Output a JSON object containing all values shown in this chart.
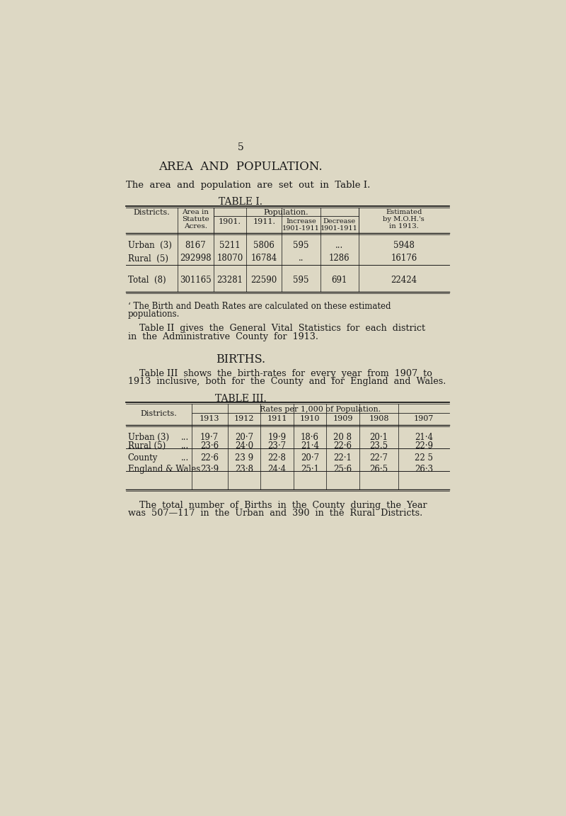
{
  "bg_color": "#ddd8c4",
  "text_color": "#1a1a1a",
  "page_number": "5",
  "title": "AREA  AND  POPULATION.",
  "intro_text": "The  area  and  population  are  set  out  in  Table I.",
  "table1_title": "TABLE I.",
  "table1_rows": [
    [
      "Urban  (3)",
      "8167",
      "5211",
      "5806",
      "595",
      "...",
      "5948"
    ],
    [
      "Rural  (5)",
      "292998",
      "18070",
      "16784",
      "..",
      "1286",
      "16176"
    ],
    [
      "Total  (8)",
      "301165",
      "23281",
      "22590",
      "595",
      "691",
      "22424"
    ]
  ],
  "footnote1": "‘ The Birth and Death Rates are calculated on these estimated\npopulations.",
  "para2_line1": "    Table II  gives  the  General  Vital  Statistics  for  each  district",
  "para2_line2": "in  the  Administrative  County  for  1913.",
  "births_title": "BIRTHS.",
  "births_line1": "    Table III  shows  the  birth-rates  for  every  year  from  1907  to",
  "births_line2": "1913  inclusive,  both  for  the  County  and  for  England  and  Wales.",
  "table3_title": "TABLE III.",
  "table3_col_header": "Rates per 1,000 of Population.",
  "table3_years": [
    "1913",
    "1912",
    "1911",
    "1910",
    "1909",
    "1908",
    "1907"
  ],
  "table3_data": [
    [
      "Urban (3)",
      "...",
      "19·7",
      "20·7",
      "19·9",
      "18·6",
      "20 8",
      "20·1",
      "21·4"
    ],
    [
      "Rural (5)",
      "...",
      "23·6",
      "24·0",
      "23·7",
      "21·4",
      "22·6",
      "23.5",
      "22·9"
    ],
    [
      "County",
      "...",
      "22·6",
      "23 9",
      "22·8",
      "20·7",
      "22·1",
      "22·7",
      "22 5"
    ],
    [
      "England & Wales",
      "",
      "23·9",
      "23·8",
      "24·4",
      "25·1",
      "25·6",
      "26·5",
      "26·3"
    ]
  ],
  "final_line1": "    The  total  number  of  Births  in  the  County  during  the  Year",
  "final_line2": "was  507—117  in  the  Urban  and  390  in  the  Rural  Districts."
}
